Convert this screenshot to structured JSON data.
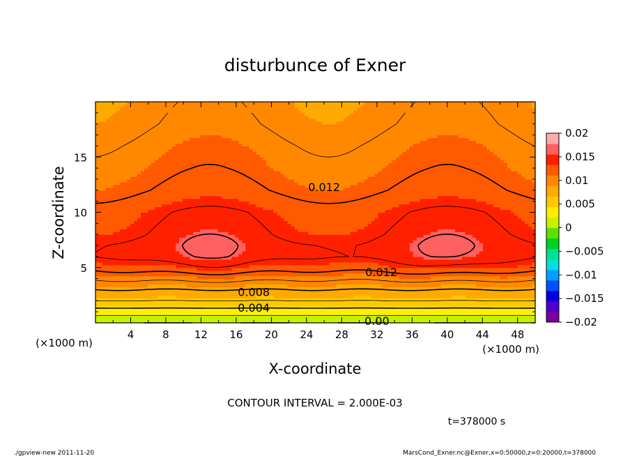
{
  "chart_data": {
    "type": "heatmap",
    "subtype": "filled-contour",
    "title": "disturbunce of Exner",
    "xlabel": "X-coordinate",
    "ylabel": "Z-coordinate",
    "x_unit": "(×1000 m)",
    "y_unit": "(×1000 m)",
    "xlim": [
      0,
      50
    ],
    "ylim": [
      0,
      20
    ],
    "x_ticks": [
      4,
      8,
      12,
      16,
      20,
      24,
      28,
      32,
      36,
      40,
      44,
      48
    ],
    "y_ticks": [
      5,
      10,
      15
    ],
    "colorbar": {
      "levels": [
        -0.02,
        -0.015,
        -0.01,
        -0.005,
        0,
        0.005,
        0.01,
        0.015,
        0.02
      ],
      "labels": [
        "0.02",
        "0.015",
        "0.01",
        "0.005",
        "0",
        "−0.005",
        "−0.01",
        "−0.015",
        "−0.02"
      ]
    },
    "contour_interval": "CONTOUR INTERVAL = 2.000E-03",
    "contour_labels": [
      {
        "text": "0.012",
        "x": 26,
        "z": 12.3
      },
      {
        "text": "0.012",
        "x": 32.5,
        "z": 4.6
      },
      {
        "text": "0.008",
        "x": 18,
        "z": 2.8
      },
      {
        "text": "0.004",
        "x": 18,
        "z": 1.4
      },
      {
        "text": "0.00",
        "x": 32,
        "z": 0.2
      }
    ],
    "field_profile": {
      "z": [
        0,
        1,
        2,
        3,
        4,
        5,
        6,
        7,
        8,
        10,
        12,
        14,
        16,
        18,
        20
      ],
      "value": [
        0.0,
        0.003,
        0.006,
        0.008,
        0.0105,
        0.013,
        0.0145,
        0.0145,
        0.014,
        0.0135,
        0.012,
        0.0112,
        0.0106,
        0.0098,
        0.0094
      ]
    },
    "maxima": [
      {
        "x": 13,
        "z": 7,
        "value": 0.016
      },
      {
        "x": 40,
        "z": 7,
        "value": 0.016
      }
    ],
    "time_label": "t=378000 s",
    "colors": {
      "palette": [
        "#7a00a0",
        "#5000c8",
        "#0000e0",
        "#0050ff",
        "#00a0ff",
        "#00e0e0",
        "#00e090",
        "#00d020",
        "#60e000",
        "#c8f000",
        "#ffee00",
        "#ffc800",
        "#ffaa00",
        "#ff8800",
        "#ff5a00",
        "#ff2000",
        "#ff6060",
        "#ffaaaa"
      ]
    }
  },
  "footer": {
    "left": "./gpview-new   2011-11-20",
    "right": "MarsCond_Exner.nc@Exner,x=0:50000,z=0:20000,t=378000"
  }
}
